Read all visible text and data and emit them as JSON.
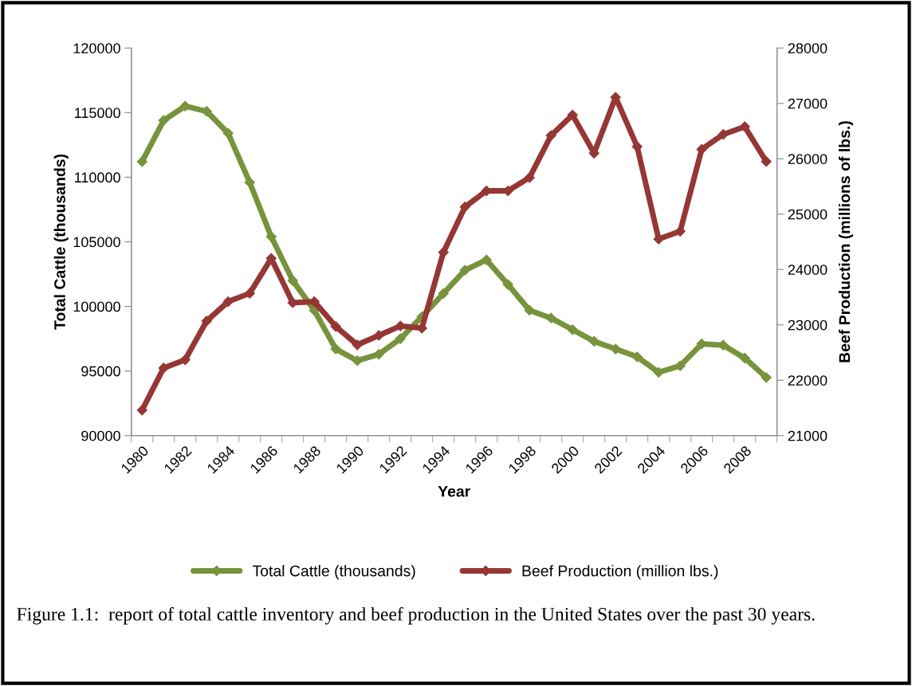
{
  "chart_data": {
    "type": "line",
    "categories": [
      "1980",
      null,
      "1982",
      null,
      "1984",
      null,
      "1986",
      null,
      "1988",
      null,
      "1990",
      null,
      "1992",
      null,
      "1994",
      null,
      "1996",
      null,
      "1998",
      null,
      "2000",
      null,
      "2002",
      null,
      "2004",
      null,
      "2006",
      null,
      "2008",
      null
    ],
    "series": [
      {
        "name": "Total Cattle (thousands)",
        "color": "#77933c",
        "values": [
          111200,
          114400,
          115500,
          115100,
          113400,
          109600,
          105400,
          102000,
          99700,
          96700,
          95800,
          96300,
          97500,
          99200,
          101000,
          102800,
          103600,
          101700,
          99700,
          99100,
          98200,
          97300,
          96700,
          96100,
          94900,
          95400,
          97100,
          97000,
          96000,
          94500
        ]
      },
      {
        "name": "Beef Production (million lbs.)",
        "color": "#953735",
        "axis": "y2",
        "values": [
          21460,
          22220,
          22370,
          23070,
          23420,
          23570,
          24200,
          23400,
          23420,
          22970,
          22640,
          22810,
          22980,
          22940,
          24310,
          25130,
          25420,
          25420,
          25660,
          26420,
          26790,
          26100,
          27110,
          26220,
          24550,
          24690,
          26170,
          26440,
          26580,
          25950
        ]
      }
    ],
    "xlabel": "Year",
    "ylabel": "Total Cattle (thousands)",
    "y2label": "Beef Production (millions of lbs.)",
    "ylim": [
      90000,
      120000
    ],
    "yticks": [
      90000,
      95000,
      100000,
      105000,
      110000,
      115000,
      120000
    ],
    "y2lim": [
      21000,
      28000
    ],
    "y2ticks": [
      21000,
      22000,
      23000,
      24000,
      25000,
      26000,
      27000,
      28000
    ],
    "marker": "diamond",
    "line_style": "solid",
    "grid": false,
    "legend": "bottom",
    "annotations": [
      "Figure 1.1:  report of total cattle inventory and beef production in the United States over the past 30 years."
    ]
  }
}
